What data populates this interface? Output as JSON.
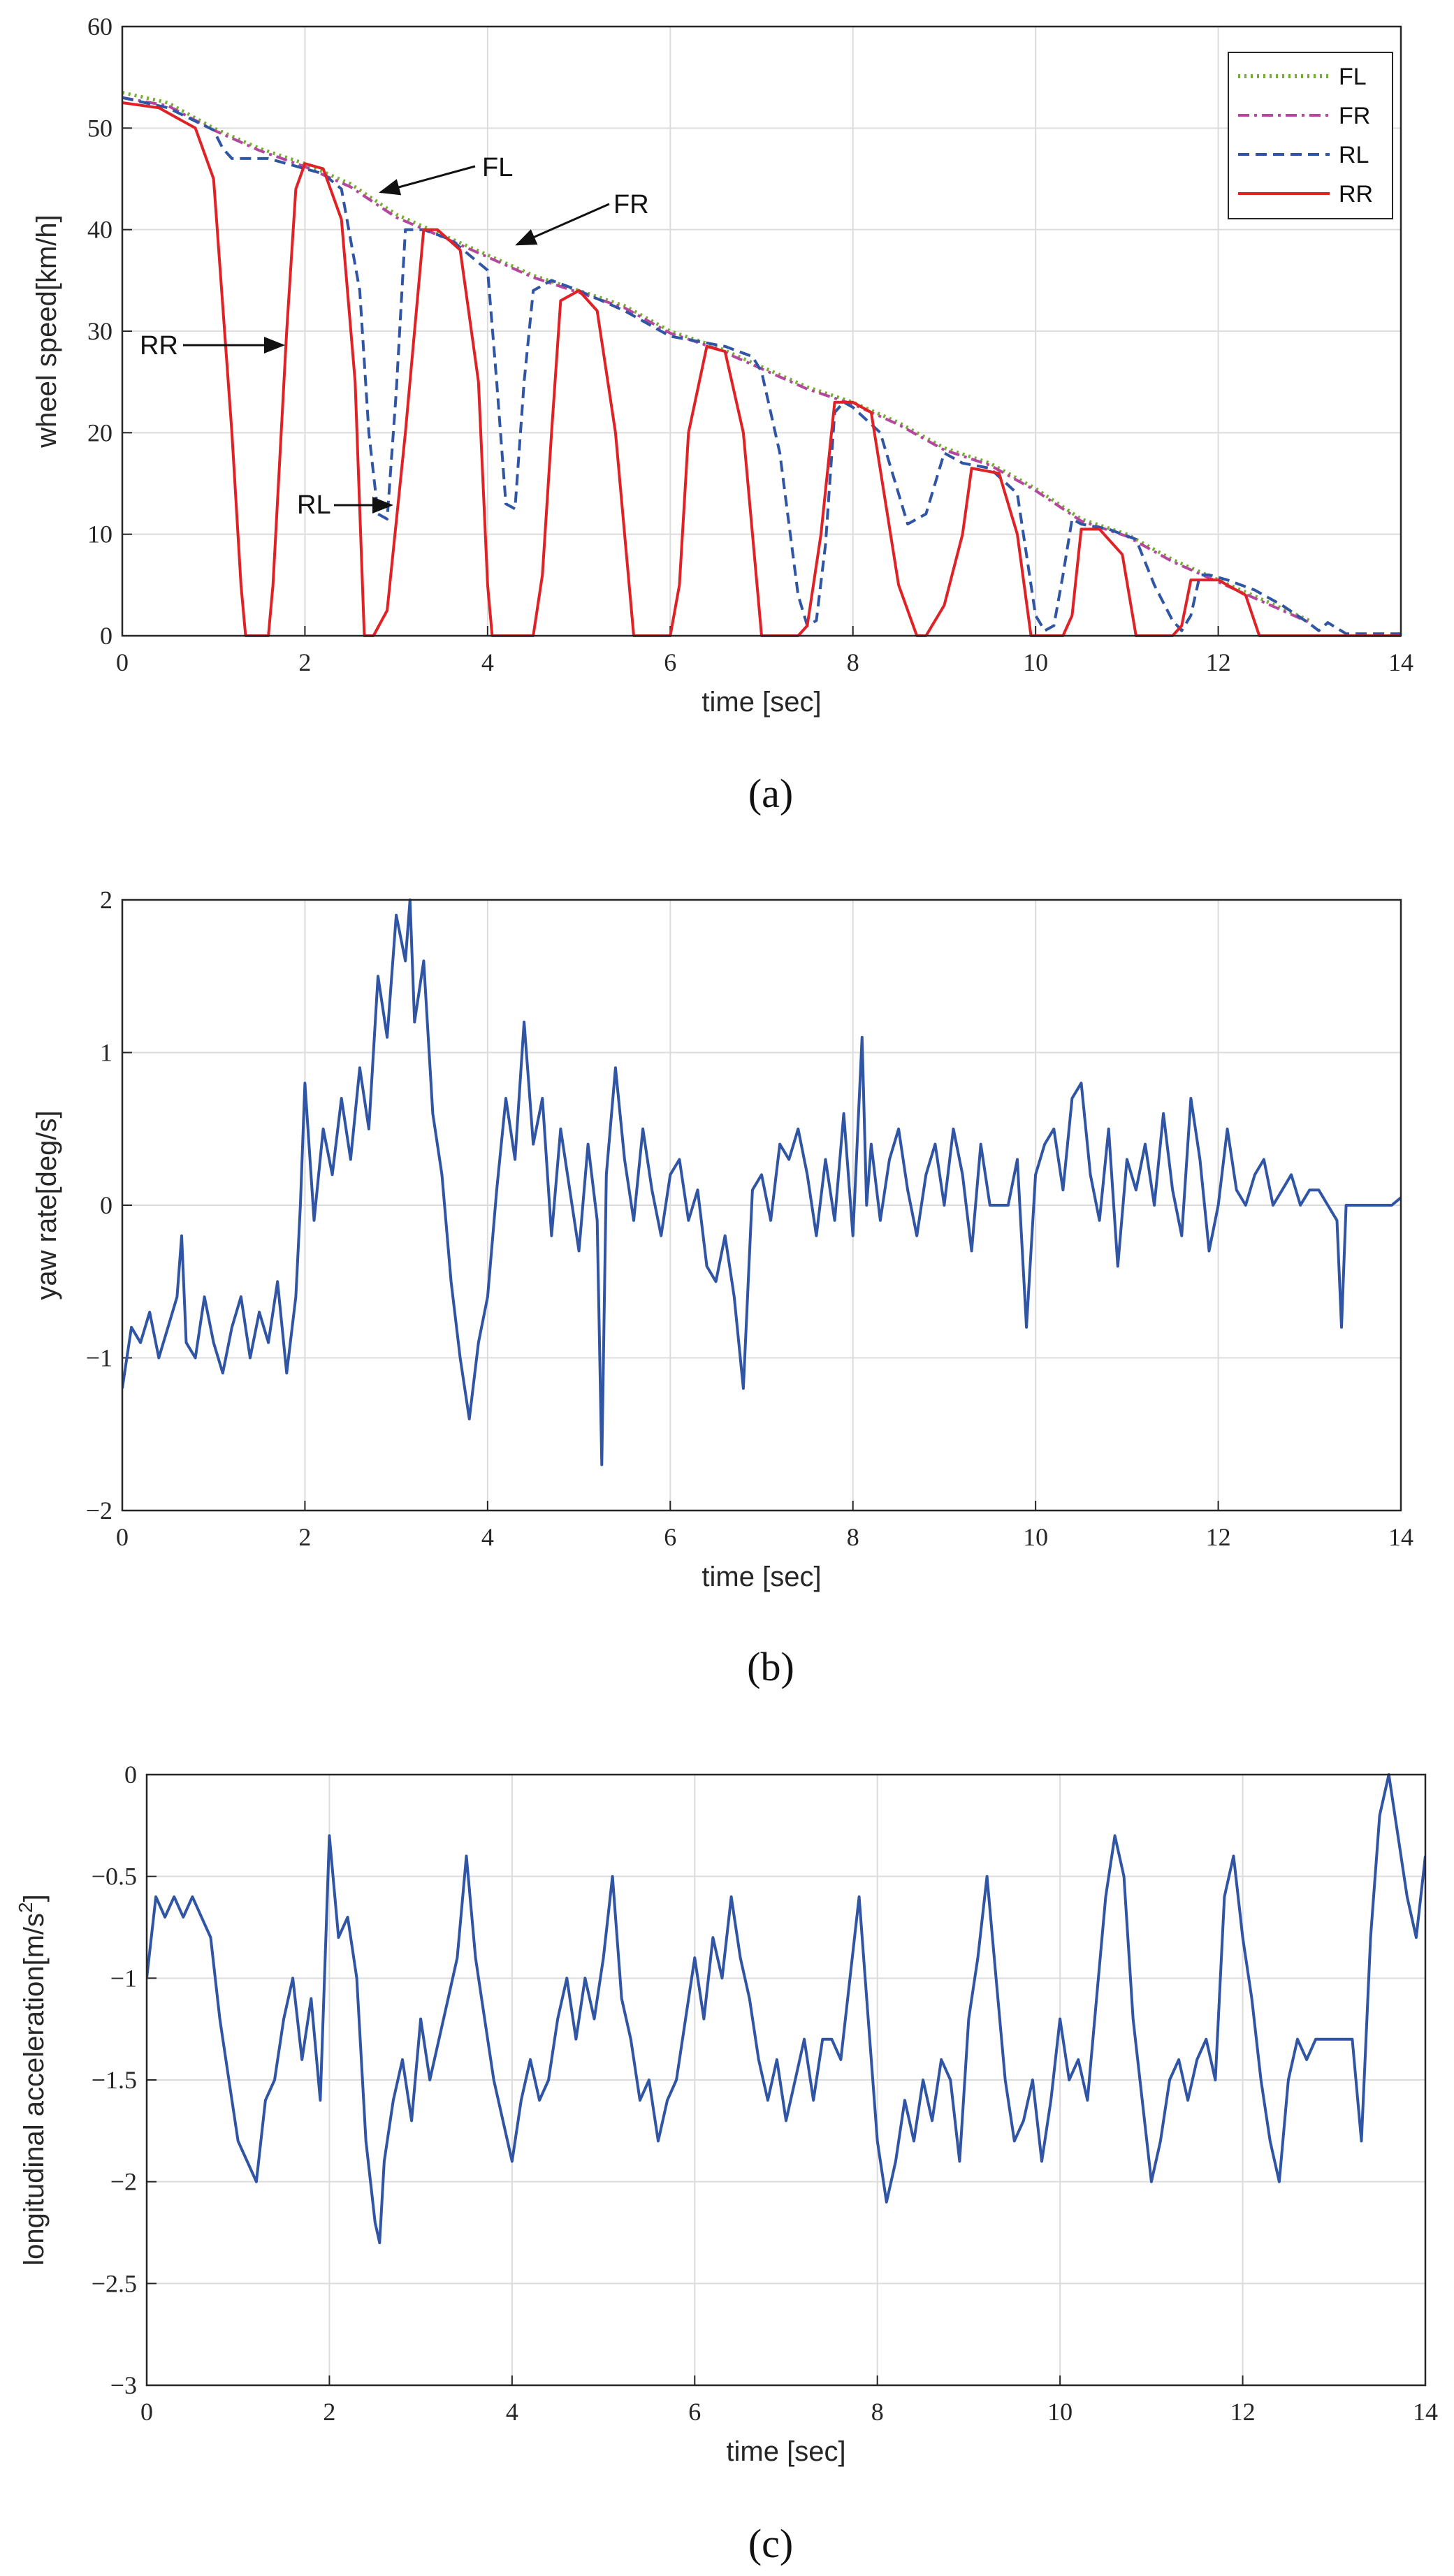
{
  "chart_data": [
    {
      "type": "line",
      "caption": "(a)",
      "xlabel": "time [sec]",
      "ylabel": "wheel speed[km/h]",
      "xlim": [
        0,
        14
      ],
      "ylim": [
        0,
        60
      ],
      "xticks": [
        "0",
        "2",
        "4",
        "6",
        "8",
        "10",
        "12",
        "14"
      ],
      "yticks": [
        "0",
        "10",
        "20",
        "30",
        "40",
        "50",
        "60"
      ],
      "grid": true,
      "legend": {
        "position": "top-right",
        "entries": [
          "FL",
          "FR",
          "RL",
          "RR"
        ]
      },
      "series": [
        {
          "name": "FL",
          "color": "#77ac30",
          "style": "dotted",
          "x": [
            0,
            0.5,
            1.0,
            1.5,
            2.0,
            2.5,
            3.0,
            3.5,
            4.0,
            4.5,
            5.0,
            5.5,
            6.0,
            6.5,
            7.0,
            7.5,
            8.0,
            8.5,
            9.0,
            9.5,
            10.0,
            10.5,
            11.0,
            11.5,
            12.0,
            12.5,
            13.0
          ],
          "y": [
            53.5,
            52.5,
            50.0,
            48.0,
            46.5,
            44.5,
            41.5,
            39.5,
            37.5,
            35.5,
            34.0,
            32.5,
            30.0,
            28.5,
            26.5,
            24.5,
            23.0,
            21.0,
            18.5,
            17.0,
            14.5,
            11.5,
            10.0,
            7.5,
            5.5,
            3.5,
            1.5
          ]
        },
        {
          "name": "FR",
          "color": "#b5479e",
          "style": "dashdot",
          "x": [
            0,
            0.5,
            1.0,
            1.5,
            2.0,
            2.5,
            3.0,
            3.5,
            4.0,
            4.5,
            5.0,
            5.5,
            6.0,
            6.5,
            7.0,
            7.5,
            8.0,
            8.5,
            9.0,
            9.5,
            10.0,
            10.5,
            11.0,
            11.5,
            12.0,
            12.5,
            13.0
          ],
          "y": [
            53.0,
            52.2,
            49.8,
            47.8,
            46.2,
            44.2,
            41.2,
            39.3,
            37.3,
            35.3,
            33.8,
            32.3,
            29.8,
            28.3,
            26.3,
            24.3,
            22.8,
            20.8,
            18.3,
            16.8,
            14.3,
            11.3,
            9.8,
            7.3,
            5.3,
            3.3,
            1.3
          ]
        },
        {
          "name": "RL",
          "color": "#2f55a4",
          "style": "dashed",
          "x": [
            0,
            0.5,
            1.0,
            1.1,
            1.2,
            1.4,
            1.6,
            1.8,
            2.0,
            2.2,
            2.4,
            2.6,
            2.7,
            2.8,
            2.9,
            3.0,
            3.1,
            3.3,
            3.6,
            4.0,
            4.1,
            4.2,
            4.3,
            4.4,
            4.5,
            4.7,
            5.0,
            5.5,
            6.0,
            6.3,
            6.6,
            6.9,
            7.0,
            7.2,
            7.4,
            7.5,
            7.6,
            7.7,
            7.8,
            7.9,
            8.0,
            8.3,
            8.6,
            8.8,
            9.0,
            9.2,
            9.5,
            9.8,
            9.9,
            10.0,
            10.1,
            10.2,
            10.3,
            10.4,
            10.5,
            10.8,
            11.1,
            11.3,
            11.5,
            11.6,
            11.7,
            11.8,
            11.9,
            12.1,
            12.4,
            12.7,
            13.0,
            13.1,
            13.2,
            13.4,
            14.0
          ],
          "y": [
            53.0,
            52.0,
            49.8,
            48.0,
            47.0,
            47.0,
            47.0,
            46.5,
            46.0,
            45.5,
            44.0,
            34.0,
            20.0,
            12.0,
            11.5,
            24.0,
            40.0,
            40.0,
            39.0,
            36.0,
            25.0,
            13.0,
            12.5,
            25.0,
            34.0,
            35.0,
            34.0,
            32.0,
            29.5,
            29.0,
            28.5,
            27.5,
            26.0,
            18.0,
            4.0,
            1.0,
            1.5,
            9.0,
            22.0,
            23.0,
            22.5,
            20.0,
            11.0,
            12.0,
            18.0,
            17.0,
            16.5,
            14.0,
            8.0,
            2.0,
            0.5,
            1.0,
            6.0,
            11.5,
            11.0,
            10.5,
            9.5,
            5.0,
            1.5,
            0.5,
            2.0,
            6.0,
            6.0,
            5.5,
            4.5,
            3.0,
            1.2,
            0.5,
            1.3,
            0.2,
            0.2
          ]
        },
        {
          "name": "RR",
          "color": "#e02226",
          "style": "solid",
          "x": [
            0,
            0.4,
            0.8,
            1.0,
            1.2,
            1.3,
            1.35,
            1.6,
            1.65,
            1.8,
            1.9,
            2.0,
            2.2,
            2.4,
            2.55,
            2.65,
            2.75,
            2.9,
            3.1,
            3.3,
            3.45,
            3.7,
            3.9,
            4.0,
            4.05,
            4.5,
            4.6,
            4.7,
            4.8,
            5.0,
            5.2,
            5.4,
            5.55,
            5.6,
            6.0,
            6.1,
            6.2,
            6.4,
            6.6,
            6.8,
            6.95,
            7.0,
            7.4,
            7.5,
            7.65,
            7.8,
            8.0,
            8.2,
            8.5,
            8.7,
            8.8,
            9.0,
            9.2,
            9.3,
            9.6,
            9.8,
            9.95,
            10.3,
            10.4,
            10.5,
            10.7,
            10.95,
            11.1,
            11.5,
            11.6,
            11.7,
            12.0,
            12.3,
            12.45,
            12.6,
            14.0
          ],
          "y": [
            52.5,
            52.0,
            50.0,
            45.0,
            20.0,
            5.0,
            0,
            0,
            5.0,
            30.0,
            44.0,
            46.5,
            46.0,
            41.0,
            25.0,
            0,
            0,
            2.5,
            20.0,
            40.0,
            40.0,
            38.0,
            25.0,
            5.0,
            0,
            0,
            6.0,
            20.0,
            33.0,
            34.0,
            32.0,
            20.0,
            5.0,
            0,
            0,
            5.0,
            20.0,
            28.5,
            28.0,
            20.0,
            5.0,
            0,
            0,
            1.0,
            10.0,
            23.0,
            23.0,
            22.0,
            5.0,
            0,
            0,
            3.0,
            10.0,
            16.5,
            16.0,
            10.0,
            0,
            0,
            2.0,
            10.5,
            10.5,
            8.0,
            0,
            0,
            1.0,
            5.5,
            5.5,
            4.0,
            0,
            0,
            0
          ]
        }
      ],
      "annotations": [
        "FL",
        "FR",
        "RR",
        "RL"
      ]
    },
    {
      "type": "line",
      "caption": "(b)",
      "xlabel": "time [sec]",
      "ylabel": "yaw rate[deg/s]",
      "xlim": [
        0,
        14
      ],
      "ylim": [
        -2,
        2
      ],
      "xticks": [
        "0",
        "2",
        "4",
        "6",
        "8",
        "10",
        "12",
        "14"
      ],
      "yticks": [
        "−2",
        "−1",
        "0",
        "1",
        "2"
      ],
      "grid": true,
      "series": [
        {
          "name": "yaw rate",
          "color": "#2f55a4",
          "style": "solid",
          "x": [
            0,
            0.1,
            0.2,
            0.3,
            0.4,
            0.5,
            0.6,
            0.65,
            0.7,
            0.8,
            0.9,
            1.0,
            1.1,
            1.2,
            1.3,
            1.4,
            1.5,
            1.6,
            1.7,
            1.8,
            1.9,
            1.95,
            2.0,
            2.1,
            2.2,
            2.3,
            2.4,
            2.5,
            2.6,
            2.7,
            2.8,
            2.9,
            3.0,
            3.1,
            3.15,
            3.2,
            3.3,
            3.4,
            3.5,
            3.6,
            3.7,
            3.8,
            3.9,
            4.0,
            4.1,
            4.2,
            4.3,
            4.4,
            4.45,
            4.5,
            4.6,
            4.7,
            4.8,
            4.9,
            5.0,
            5.1,
            5.2,
            5.25,
            5.3,
            5.4,
            5.5,
            5.6,
            5.7,
            5.8,
            5.9,
            6.0,
            6.1,
            6.2,
            6.3,
            6.4,
            6.5,
            6.6,
            6.7,
            6.8,
            6.9,
            7.0,
            7.1,
            7.2,
            7.3,
            7.4,
            7.5,
            7.6,
            7.7,
            7.8,
            7.9,
            8.0,
            8.1,
            8.15,
            8.2,
            8.3,
            8.4,
            8.5,
            8.6,
            8.7,
            8.8,
            8.9,
            9.0,
            9.1,
            9.2,
            9.3,
            9.4,
            9.5,
            9.6,
            9.7,
            9.8,
            9.9,
            10.0,
            10.1,
            10.2,
            10.3,
            10.4,
            10.5,
            10.6,
            10.7,
            10.8,
            10.9,
            11.0,
            11.1,
            11.2,
            11.3,
            11.4,
            11.5,
            11.6,
            11.7,
            11.8,
            11.9,
            12.0,
            12.1,
            12.2,
            12.3,
            12.4,
            12.5,
            12.6,
            12.7,
            12.8,
            12.9,
            13.0,
            13.1,
            13.2,
            13.3,
            13.35,
            13.4,
            13.5,
            13.6,
            13.7,
            13.8,
            13.9,
            14.0
          ],
          "y": [
            -1.2,
            -0.8,
            -0.9,
            -0.7,
            -1.0,
            -0.8,
            -0.6,
            -0.2,
            -0.9,
            -1.0,
            -0.6,
            -0.9,
            -1.1,
            -0.8,
            -0.6,
            -1.0,
            -0.7,
            -0.9,
            -0.5,
            -1.1,
            -0.6,
            0.0,
            0.8,
            -0.1,
            0.5,
            0.2,
            0.7,
            0.3,
            0.9,
            0.5,
            1.5,
            1.1,
            1.9,
            1.6,
            2.0,
            1.2,
            1.6,
            0.6,
            0.2,
            -0.5,
            -1.0,
            -1.4,
            -0.9,
            -0.6,
            0.1,
            0.7,
            0.3,
            1.2,
            0.8,
            0.4,
            0.7,
            -0.2,
            0.5,
            0.1,
            -0.3,
            0.4,
            -0.1,
            -1.7,
            0.2,
            0.9,
            0.3,
            -0.1,
            0.5,
            0.1,
            -0.2,
            0.2,
            0.3,
            -0.1,
            0.1,
            -0.4,
            -0.5,
            -0.2,
            -0.6,
            -1.2,
            0.1,
            0.2,
            -0.1,
            0.4,
            0.3,
            0.5,
            0.2,
            -0.2,
            0.3,
            -0.1,
            0.6,
            -0.2,
            1.1,
            0.0,
            0.4,
            -0.1,
            0.3,
            0.5,
            0.1,
            -0.2,
            0.2,
            0.4,
            0.0,
            0.5,
            0.2,
            -0.3,
            0.4,
            0.0,
            0.0,
            0.0,
            0.3,
            -0.8,
            0.2,
            0.4,
            0.5,
            0.1,
            0.7,
            0.8,
            0.2,
            -0.1,
            0.5,
            -0.4,
            0.3,
            0.1,
            0.4,
            0.0,
            0.6,
            0.1,
            -0.2,
            0.7,
            0.3,
            -0.3,
            0.0,
            0.5,
            0.1,
            0.0,
            0.2,
            0.3,
            0.0,
            0.1,
            0.2,
            0.0,
            0.1,
            0.1,
            0.0,
            -0.1,
            -0.8,
            0.0,
            0.0,
            0.0,
            0.0,
            0.0,
            0.0,
            0.05
          ]
        }
      ]
    },
    {
      "type": "line",
      "caption": "(c)",
      "xlabel": "time [sec]",
      "ylabel": "longitudinal acceleration[m/s",
      "ylabel_sup": "2",
      "ylabel_end": "]",
      "xlim": [
        0,
        14
      ],
      "ylim": [
        -3,
        0
      ],
      "xticks": [
        "0",
        "2",
        "4",
        "6",
        "8",
        "10",
        "12",
        "14"
      ],
      "yticks": [
        "−3",
        "−2.5",
        "−2",
        "−1.5",
        "−1",
        "−0.5",
        "0"
      ],
      "grid": true,
      "series": [
        {
          "name": "longitudinal acceleration",
          "color": "#2f55a4",
          "style": "solid",
          "x": [
            0,
            0.1,
            0.2,
            0.3,
            0.4,
            0.5,
            0.6,
            0.7,
            0.8,
            0.9,
            1.0,
            1.1,
            1.2,
            1.3,
            1.4,
            1.5,
            1.6,
            1.7,
            1.8,
            1.9,
            2.0,
            2.1,
            2.2,
            2.3,
            2.4,
            2.5,
            2.55,
            2.6,
            2.7,
            2.8,
            2.9,
            3.0,
            3.1,
            3.2,
            3.3,
            3.4,
            3.5,
            3.6,
            3.7,
            3.8,
            3.9,
            4.0,
            4.1,
            4.2,
            4.3,
            4.4,
            4.5,
            4.6,
            4.7,
            4.8,
            4.9,
            5.0,
            5.1,
            5.2,
            5.3,
            5.4,
            5.5,
            5.6,
            5.7,
            5.8,
            5.9,
            6.0,
            6.1,
            6.2,
            6.3,
            6.4,
            6.5,
            6.6,
            6.7,
            6.8,
            6.9,
            7.0,
            7.1,
            7.2,
            7.3,
            7.4,
            7.5,
            7.6,
            7.7,
            7.8,
            7.9,
            8.0,
            8.1,
            8.2,
            8.3,
            8.4,
            8.5,
            8.6,
            8.7,
            8.8,
            8.9,
            9.0,
            9.1,
            9.2,
            9.3,
            9.4,
            9.5,
            9.6,
            9.7,
            9.8,
            9.9,
            10.0,
            10.1,
            10.2,
            10.3,
            10.4,
            10.5,
            10.6,
            10.7,
            10.8,
            10.9,
            11.0,
            11.1,
            11.2,
            11.3,
            11.4,
            11.5,
            11.6,
            11.7,
            11.8,
            11.9,
            12.0,
            12.1,
            12.2,
            12.3,
            12.4,
            12.5,
            12.6,
            12.7,
            12.8,
            12.9,
            13.0,
            13.1,
            13.2,
            13.3,
            13.4,
            13.5,
            13.6,
            13.7,
            13.8,
            13.9,
            14.0
          ],
          "y": [
            -1.0,
            -0.6,
            -0.7,
            -0.6,
            -0.7,
            -0.6,
            -0.7,
            -0.8,
            -1.2,
            -1.5,
            -1.8,
            -1.9,
            -2.0,
            -1.6,
            -1.5,
            -1.2,
            -1.0,
            -1.4,
            -1.1,
            -1.6,
            -0.3,
            -0.8,
            -0.7,
            -1.0,
            -1.8,
            -2.2,
            -2.3,
            -1.9,
            -1.6,
            -1.4,
            -1.7,
            -1.2,
            -1.5,
            -1.3,
            -1.1,
            -0.9,
            -0.4,
            -0.9,
            -1.2,
            -1.5,
            -1.7,
            -1.9,
            -1.6,
            -1.4,
            -1.6,
            -1.5,
            -1.2,
            -1.0,
            -1.3,
            -1.0,
            -1.2,
            -0.9,
            -0.5,
            -1.1,
            -1.3,
            -1.6,
            -1.5,
            -1.8,
            -1.6,
            -1.5,
            -1.2,
            -0.9,
            -1.2,
            -0.8,
            -1.0,
            -0.6,
            -0.9,
            -1.1,
            -1.4,
            -1.6,
            -1.4,
            -1.7,
            -1.5,
            -1.3,
            -1.6,
            -1.3,
            -1.3,
            -1.4,
            -1.0,
            -0.6,
            -1.2,
            -1.8,
            -2.1,
            -1.9,
            -1.6,
            -1.8,
            -1.5,
            -1.7,
            -1.4,
            -1.5,
            -1.9,
            -1.2,
            -0.9,
            -0.5,
            -1.0,
            -1.5,
            -1.8,
            -1.7,
            -1.5,
            -1.9,
            -1.6,
            -1.2,
            -1.5,
            -1.4,
            -1.6,
            -1.1,
            -0.6,
            -0.3,
            -0.5,
            -1.2,
            -1.6,
            -2.0,
            -1.8,
            -1.5,
            -1.4,
            -1.6,
            -1.4,
            -1.3,
            -1.5,
            -0.6,
            -0.4,
            -0.8,
            -1.1,
            -1.5,
            -1.8,
            -2.0,
            -1.5,
            -1.3,
            -1.4,
            -1.3,
            -1.3,
            -1.3,
            -1.3,
            -1.3,
            -1.8,
            -0.8,
            -0.2,
            0.0,
            -0.3,
            -0.6,
            -0.8,
            -0.4
          ]
        }
      ]
    }
  ]
}
